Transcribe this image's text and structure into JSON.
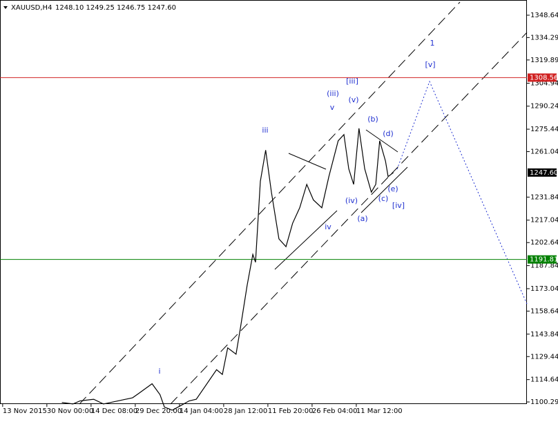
{
  "chart_data": {
    "type": "line",
    "title": "XAUUSD,H4",
    "subtitle": "1248.10 1249.25 1246.75 1247.60",
    "x": [
      1.34,
      1.59,
      1.75,
      2.06,
      2.28,
      2.94,
      3.09,
      3.38,
      3.56,
      3.66,
      3.84,
      4.03,
      4.22,
      4.38,
      4.84,
      4.97,
      5.09,
      5.28,
      5.38,
      5.53,
      5.66,
      5.72,
      5.83,
      5.95,
      6.08,
      6.25,
      6.41,
      6.56,
      6.72,
      6.88,
      7.03,
      7.22,
      7.38,
      7.59,
      7.72,
      7.83,
      7.94,
      8.06,
      8.19,
      8.34,
      8.44,
      8.53,
      8.66,
      8.72,
      8.84
    ],
    "series": [
      {
        "name": "XAUUSD,H4",
        "color": "#000000",
        "values": [
          1100,
          1099,
          1101,
          1102,
          1099,
          1103,
          1106,
          1112,
          1105,
          1097,
          1095,
          1098,
          1101,
          1102,
          1121,
          1118,
          1135,
          1131,
          1148,
          1175,
          1195,
          1190,
          1242,
          1262,
          1235,
          1205,
          1200,
          1215,
          1225,
          1240,
          1230,
          1225,
          1245,
          1268,
          1272,
          1250,
          1240,
          1276,
          1250,
          1235,
          1240,
          1268,
          1255,
          1245,
          1247.6
        ]
      }
    ],
    "xlim": [
      -0.06,
      11.86
    ],
    "xticks": [
      {
        "value": 0,
        "label": "13 Nov 2015"
      },
      {
        "value": 1,
        "label": "30 Nov 00:00"
      },
      {
        "value": 2,
        "label": "14 Dec 08:00"
      },
      {
        "value": 3,
        "label": "29 Dec 20:00"
      },
      {
        "value": 4,
        "label": "14 Jan 04:00"
      },
      {
        "value": 5,
        "label": "28 Jan 12:00"
      },
      {
        "value": 6,
        "label": "11 Feb 20:00"
      },
      {
        "value": 7,
        "label": "26 Feb 04:00"
      },
      {
        "value": 8,
        "label": "11 Mar 12:00"
      }
    ],
    "ylim": [
      1098.96,
      1358.4
    ],
    "yticks": [
      1348.64,
      1334.29,
      1319.89,
      1304.94,
      1290.24,
      1275.44,
      1261.04,
      1231.84,
      1217.04,
      1202.64,
      1187.84,
      1173.04,
      1158.64,
      1143.84,
      1129.44,
      1114.64,
      1100.29
    ],
    "levels": [
      {
        "value": 1308.56,
        "label": "1308.56",
        "color": "#d02020"
      },
      {
        "value": 1247.6,
        "label": "1247.60",
        "color": "#000000"
      },
      {
        "value": 1191.81,
        "label": "1191.81",
        "color": "#008000"
      }
    ],
    "annotations": [
      "i",
      "iii",
      "iv",
      "v",
      "(iii)",
      "[iii]",
      "(iv)",
      "(v)",
      "(a)",
      "(b)",
      "(c)",
      "(d)",
      "(e)",
      "[iv]",
      "[v]",
      "1"
    ]
  }
}
